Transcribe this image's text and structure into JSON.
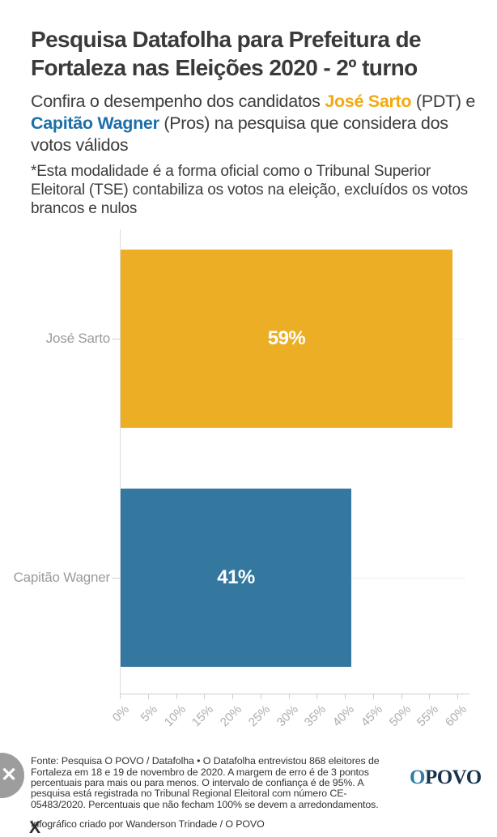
{
  "header": {
    "title": "Pesquisa Datafolha para Prefeitura de Fortaleza nas Eleições 2020 - 2º turno",
    "subtitle": {
      "lead": "Confira o desempenho dos candidatos ",
      "candidate1": "José Sarto",
      "after1": " (PDT) e ",
      "candidate2": "Capitão Wagner",
      "after2": " (Pros) na pesquisa que considera dos votos válidos"
    },
    "note": "*Esta modalidade é a forma oficial como o Tribunal Superior Eleitoral (TSE) contabiliza os votos na eleição, excluídos os votos brancos e nulos"
  },
  "chart_data": {
    "type": "bar",
    "orientation": "horizontal",
    "categories": [
      "José Sarto",
      "Capitão Wagner"
    ],
    "values": [
      59,
      41
    ],
    "value_labels": [
      "59%",
      "41%"
    ],
    "xlim": [
      0,
      60
    ],
    "xticks": [
      "0%",
      "5%",
      "10%",
      "15%",
      "20%",
      "25%",
      "30%",
      "35%",
      "40%",
      "45%",
      "50%",
      "55%",
      "60%"
    ],
    "grid": "light horizontal line per category, left and bottom axes only",
    "legend": "none",
    "bar_colors": [
      "#ebae24",
      "#35789f"
    ],
    "value_label_position": "centered inside bar, white bold"
  },
  "colors": {
    "candidate1_text": "#f2a90f",
    "candidate2_text": "#1c6fa8",
    "logo_o": "#2e7ca9",
    "logo_povo": "#16344e"
  },
  "footer": {
    "source": "Fonte: Pesquisa O POVO / Datafolha • O Datafolha entrevistou 868 eleitores de Fortaleza em 18 e 19 de novembro de 2020. A margem de erro é de 3 pontos percentuais para mais ou para menos. O intervalo de confiança é de 95%. A pesquisa está registrada no Tribunal Regional Eleitoral com número CE- 05483/2020. Percentuais que não fecham 100% se devem a arredondamentos.",
    "credit": "Infográfico criado por Wanderson Trindade / O POVO",
    "logo": {
      "part1": "O",
      "part2": "POVO"
    }
  },
  "share": {
    "x_glyph": "✕",
    "bottom_partial_glyph": "X"
  }
}
